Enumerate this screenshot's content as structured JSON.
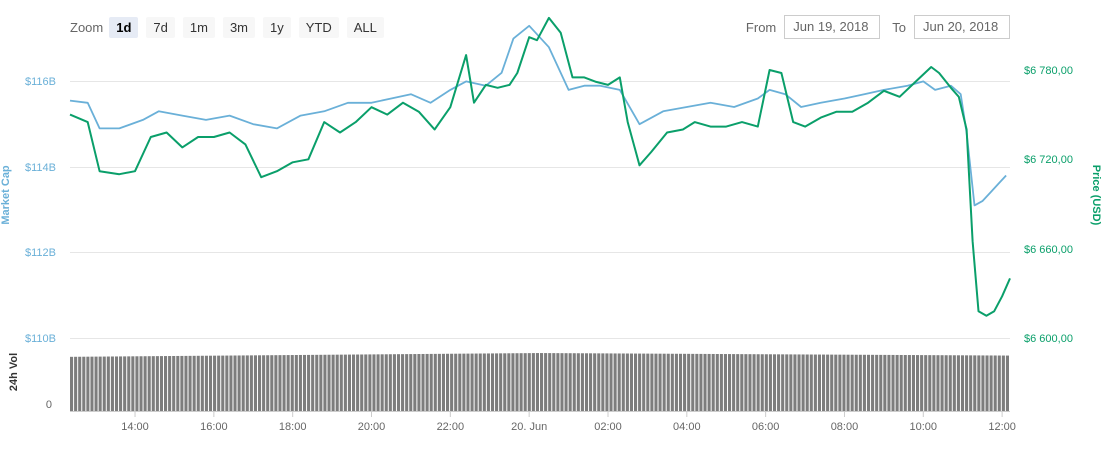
{
  "toolbar": {
    "zoom_label": "Zoom",
    "buttons": [
      "1d",
      "7d",
      "1m",
      "3m",
      "1y",
      "YTD",
      "ALL"
    ],
    "active": "1d"
  },
  "range": {
    "from_label": "From",
    "from_value": "Jun 19, 2018",
    "to_label": "To",
    "to_value": "Jun 20, 2018"
  },
  "chart_data": {
    "type": "line",
    "grid": true,
    "x_ticks": [
      "14:00",
      "16:00",
      "18:00",
      "20:00",
      "22:00",
      "20. Jun",
      "02:00",
      "04:00",
      "06:00",
      "08:00",
      "10:00",
      "12:00"
    ],
    "x_tick_hours": [
      14,
      16,
      18,
      20,
      22,
      24,
      26,
      28,
      30,
      32,
      34,
      36
    ],
    "x_range_hours": [
      12.35,
      36.2
    ],
    "left_axis": {
      "title": "Market Cap",
      "ticks": [
        "$110B",
        "$112B",
        "$114B",
        "$116B"
      ],
      "tick_values": [
        110,
        112,
        114,
        116
      ],
      "range": [
        110,
        116.5
      ],
      "color": "#6ab0d8"
    },
    "right_axis": {
      "title": "Price (USD)",
      "ticks": [
        "$6 600,00",
        "$6 660,00",
        "$6 720,00",
        "$6 780,00"
      ],
      "tick_values": [
        6600,
        6660,
        6720,
        6780
      ],
      "range": [
        6600,
        6786.7
      ],
      "color": "#0a9f6a"
    },
    "volume_axis": {
      "title": "24h Vol",
      "ticks": [
        "0"
      ],
      "bar_color": "#7d7d7d",
      "count": 230,
      "start_level": 0.86,
      "peak_level": 0.92,
      "end_level": 0.88
    },
    "series": [
      {
        "axis": "left",
        "color": "#6ab0d8",
        "x": [
          12.35,
          12.8,
          13.1,
          13.6,
          14.2,
          14.6,
          15.2,
          15.8,
          16.4,
          17.0,
          17.6,
          18.2,
          18.8,
          19.4,
          20.0,
          20.5,
          21.0,
          21.5,
          22.0,
          22.4,
          22.9,
          23.3,
          23.6,
          24.0,
          24.5,
          25.0,
          25.4,
          25.8,
          26.3,
          26.8,
          27.4,
          28.0,
          28.6,
          29.2,
          29.8,
          30.1,
          30.5,
          30.9,
          31.4,
          32.0,
          32.5,
          33.0,
          33.6,
          34.0,
          34.3,
          34.7,
          34.95,
          35.1,
          35.3,
          35.5,
          35.7,
          35.9,
          36.1
        ],
        "values": [
          115.55,
          115.5,
          114.9,
          114.9,
          115.1,
          115.3,
          115.2,
          115.1,
          115.2,
          115.0,
          114.9,
          115.2,
          115.3,
          115.5,
          115.5,
          115.6,
          115.7,
          115.5,
          115.8,
          116.0,
          115.9,
          116.2,
          117.0,
          117.3,
          116.8,
          115.8,
          115.9,
          115.9,
          115.8,
          115.0,
          115.3,
          115.4,
          115.5,
          115.4,
          115.6,
          115.8,
          115.7,
          115.4,
          115.5,
          115.6,
          115.7,
          115.8,
          115.9,
          116.0,
          115.8,
          115.9,
          115.7,
          114.8,
          113.1,
          113.2,
          113.4,
          113.6,
          113.8
        ]
      },
      {
        "axis": "right",
        "color": "#0a9f6a",
        "x": [
          12.35,
          12.8,
          13.1,
          13.6,
          14.0,
          14.4,
          14.8,
          15.2,
          15.6,
          16.0,
          16.4,
          16.8,
          17.2,
          17.6,
          18.0,
          18.4,
          18.8,
          19.2,
          19.6,
          20.0,
          20.4,
          20.8,
          21.2,
          21.6,
          22.0,
          22.4,
          22.6,
          22.9,
          23.2,
          23.5,
          23.7,
          24.0,
          24.2,
          24.5,
          24.8,
          25.1,
          25.4,
          25.7,
          26.0,
          26.3,
          26.5,
          26.8,
          27.1,
          27.5,
          27.9,
          28.2,
          28.6,
          29.0,
          29.4,
          29.8,
          30.1,
          30.4,
          30.7,
          31.0,
          31.4,
          31.8,
          32.2,
          32.6,
          33.0,
          33.4,
          33.8,
          34.2,
          34.4,
          34.7,
          34.9,
          35.1,
          35.25,
          35.4,
          35.6,
          35.8,
          36.0,
          36.2
        ],
        "values": [
          6750,
          6745,
          6712,
          6710,
          6712,
          6735,
          6738,
          6728,
          6735,
          6735,
          6738,
          6730,
          6708,
          6712,
          6718,
          6720,
          6745,
          6738,
          6745,
          6755,
          6750,
          6758,
          6752,
          6740,
          6755,
          6790,
          6758,
          6770,
          6768,
          6770,
          6778,
          6802,
          6800,
          6815,
          6805,
          6775,
          6775,
          6772,
          6770,
          6775,
          6745,
          6716,
          6725,
          6738,
          6740,
          6745,
          6742,
          6742,
          6745,
          6742,
          6780,
          6778,
          6745,
          6742,
          6748,
          6752,
          6752,
          6758,
          6766,
          6762,
          6772,
          6782,
          6778,
          6768,
          6762,
          6740,
          6665,
          6618,
          6615,
          6618,
          6628,
          6640
        ]
      }
    ]
  }
}
